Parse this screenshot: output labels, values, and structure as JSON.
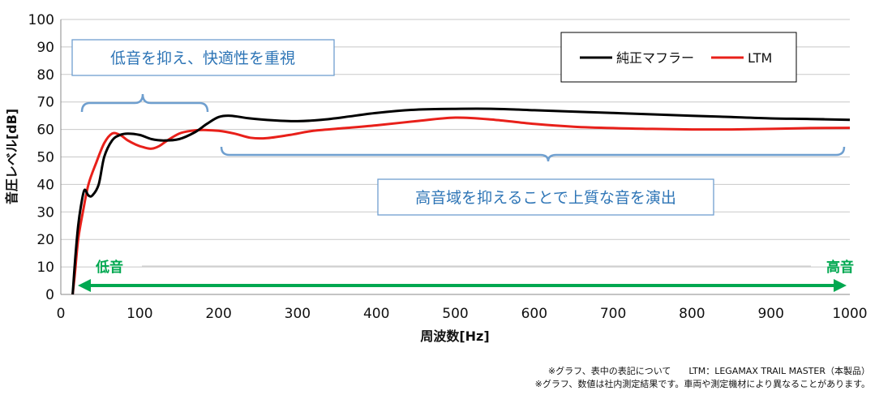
{
  "chart_data": {
    "type": "line",
    "xlabel": "周波数[Hz]",
    "ylabel": "音圧レベル[dB]",
    "xlim": [
      0,
      1000
    ],
    "ylim": [
      0,
      100
    ],
    "x_ticks": [
      "0",
      "100",
      "200",
      "300",
      "400",
      "500",
      "600",
      "700",
      "800",
      "900",
      "1000"
    ],
    "y_ticks": [
      "0",
      "10",
      "20",
      "30",
      "40",
      "50",
      "60",
      "70",
      "80",
      "90",
      "100"
    ],
    "grid": "horizontal",
    "legend_position": "top-right",
    "series": [
      {
        "name": "純正マフラー",
        "color": "#000000",
        "x": [
          15,
          18,
          22,
          26,
          30,
          35,
          40,
          48,
          55,
          65,
          75,
          85,
          100,
          115,
          130,
          150,
          170,
          185,
          200,
          215,
          240,
          270,
          300,
          330,
          360,
          400,
          450,
          500,
          550,
          600,
          650,
          700,
          750,
          800,
          850,
          900,
          950,
          1000
        ],
        "values": [
          0,
          12,
          25,
          33,
          38,
          36,
          36,
          40,
          50,
          56,
          58,
          58.5,
          58,
          56.5,
          56,
          56.5,
          59,
          62,
          64.5,
          65,
          64,
          63.3,
          63,
          63.5,
          64.5,
          66,
          67.2,
          67.5,
          67.5,
          67,
          66.5,
          66,
          65.5,
          65,
          64.5,
          64,
          63.8,
          63.5
        ]
      },
      {
        "name": "LTM",
        "color": "#e8201a",
        "x": [
          15,
          18,
          22,
          28,
          35,
          45,
          55,
          65,
          75,
          85,
          95,
          105,
          115,
          125,
          135,
          150,
          165,
          180,
          200,
          220,
          240,
          260,
          290,
          320,
          360,
          400,
          450,
          500,
          550,
          600,
          650,
          700,
          750,
          800,
          850,
          900,
          950,
          1000
        ],
        "values": [
          0,
          8,
          20,
          30,
          40,
          48,
          55,
          58.5,
          58,
          56,
          54.5,
          53.5,
          53,
          54,
          56,
          58.5,
          59.5,
          59.8,
          59.5,
          58.5,
          57,
          56.8,
          58,
          59.5,
          60.5,
          61.5,
          63,
          64.3,
          63.5,
          62,
          61,
          60.5,
          60.2,
          60,
          60,
          60.2,
          60.5,
          60.6
        ]
      }
    ]
  },
  "callouts": {
    "low": "低音を抑え、快適性を重視",
    "high": "高音域を抑えることで上質な音を演出"
  },
  "range_labels": {
    "low": "低音",
    "high": "高音"
  },
  "colors": {
    "callout": "#2e75b6",
    "range_arrow": "#00a850",
    "grid": "#c8c8c8"
  },
  "notes": {
    "line1": "※グラフ、表中の表記について　　LTM：LEGAMAX TRAIL MASTER（本製品）",
    "line2": "※グラフ、数値は社内測定結果です。車両や測定機材により異なることがあります。"
  }
}
